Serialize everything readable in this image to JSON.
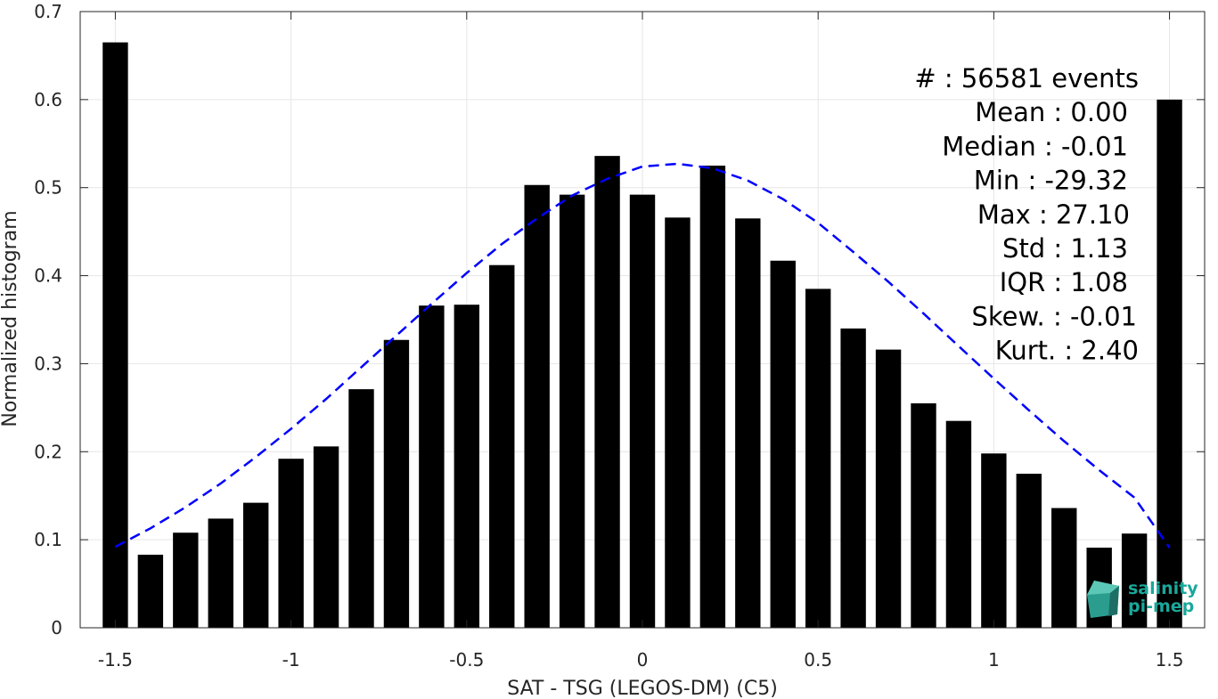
{
  "chart_data": {
    "type": "bar",
    "xlabel": "SAT - TSG (LEGOS-DM) (C5)",
    "ylabel": "Normalized histogram",
    "xlim": [
      -1.6,
      1.6
    ],
    "ylim": [
      0,
      0.7
    ],
    "xticks": [
      -1.5,
      -1,
      -0.5,
      0,
      0.5,
      1,
      1.5
    ],
    "xtick_labels": [
      "-1.5",
      "-1",
      "-0.5",
      "0",
      "0.5",
      "1",
      "1.5"
    ],
    "yticks": [
      0,
      0.1,
      0.2,
      0.3,
      0.4,
      0.5,
      0.6,
      0.7
    ],
    "ytick_labels": [
      "0",
      "0.1",
      "0.2",
      "0.3",
      "0.4",
      "0.5",
      "0.6",
      "0.7"
    ],
    "grid": true,
    "bar_color": "#000000",
    "bin_width": 0.1,
    "bins": {
      "x": [
        -1.5,
        -1.4,
        -1.3,
        -1.2,
        -1.1,
        -1.0,
        -0.9,
        -0.8,
        -0.7,
        -0.6,
        -0.5,
        -0.4,
        -0.3,
        -0.2,
        -0.1,
        0.0,
        0.1,
        0.2,
        0.3,
        0.4,
        0.5,
        0.6,
        0.7,
        0.8,
        0.9,
        1.0,
        1.1,
        1.2,
        1.3,
        1.4,
        1.5
      ],
      "values": [
        0.665,
        0.083,
        0.108,
        0.124,
        0.142,
        0.192,
        0.206,
        0.271,
        0.327,
        0.366,
        0.367,
        0.412,
        0.503,
        0.492,
        0.536,
        0.492,
        0.466,
        0.525,
        0.465,
        0.417,
        0.385,
        0.34,
        0.316,
        0.255,
        0.235,
        0.198,
        0.175,
        0.136,
        0.091,
        0.107,
        0.6
      ]
    },
    "fit_curve": {
      "style": "dashed",
      "color": "#0000ff",
      "x": [
        -1.5,
        -1.4,
        -1.3,
        -1.2,
        -1.1,
        -1.0,
        -0.9,
        -0.8,
        -0.7,
        -0.6,
        -0.5,
        -0.4,
        -0.3,
        -0.2,
        -0.1,
        0.0,
        0.1,
        0.2,
        0.3,
        0.4,
        0.5,
        0.6,
        0.7,
        0.8,
        0.9,
        1.0,
        1.1,
        1.2,
        1.3,
        1.4,
        1.5
      ],
      "y": [
        0.092,
        0.113,
        0.137,
        0.164,
        0.194,
        0.226,
        0.26,
        0.296,
        0.332,
        0.368,
        0.403,
        0.436,
        0.465,
        0.491,
        0.51,
        0.524,
        0.527,
        0.522,
        0.508,
        0.487,
        0.46,
        0.427,
        0.393,
        0.357,
        0.32,
        0.283,
        0.247,
        0.212,
        0.179,
        0.148,
        0.091
      ]
    },
    "stats": [
      "#  : 56581 events",
      "Mean : 0.00",
      "Median : -0.01",
      "Min : -29.32",
      "Max : 27.10",
      "Std : 1.13",
      "IQR : 1.08",
      "Skew. : -0.01",
      "Kurt. : 2.40"
    ]
  },
  "logo": {
    "line1": "salinity",
    "line2": "pi-mep",
    "color": "#1aa89a"
  }
}
